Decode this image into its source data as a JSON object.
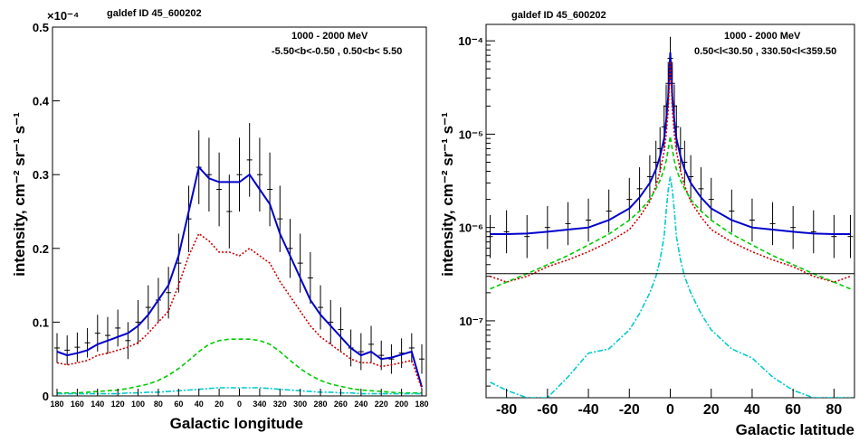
{
  "chart_data": [
    {
      "type": "line",
      "title": "galdef ID 45_600202",
      "annotation_lines": [
        "1000 -  2000 MeV",
        "-5.50<b<-0.50 ,  0.50<b< 5.50"
      ],
      "xlabel": "Galactic longitude",
      "ylabel": "intensity, cm⁻² sr⁻¹ s⁻¹",
      "y_multiplier": "×10⁻⁴",
      "x_tick_labels": [
        "180",
        "160",
        "140",
        "120",
        "100",
        "80",
        "60",
        "40",
        "20",
        "0",
        "340",
        "320",
        "300",
        "280",
        "260",
        "240",
        "220",
        "200",
        "180"
      ],
      "y_tick_labels": [
        "0",
        "0.1",
        "0.2",
        "0.3",
        "0.4",
        "0.5"
      ],
      "ylim": [
        0,
        0.5
      ],
      "x": [
        180,
        170,
        160,
        150,
        140,
        130,
        120,
        110,
        100,
        90,
        80,
        70,
        60,
        50,
        40,
        30,
        20,
        10,
        0,
        -10,
        -20,
        -30,
        -40,
        -50,
        -60,
        -70,
        -80,
        -90,
        -100,
        -110,
        -120,
        -130,
        -140,
        -150,
        -160,
        -170,
        -180
      ],
      "data_points": {
        "y": [
          0.065,
          0.062,
          0.066,
          0.072,
          0.085,
          0.082,
          0.092,
          0.075,
          0.1,
          0.12,
          0.13,
          0.14,
          0.18,
          0.24,
          0.31,
          0.3,
          0.28,
          0.25,
          0.3,
          0.32,
          0.3,
          0.28,
          0.24,
          0.2,
          0.18,
          0.16,
          0.12,
          0.1,
          0.09,
          0.065,
          0.06,
          0.07,
          0.055,
          0.05,
          0.058,
          0.065,
          0.05
        ],
        "err": [
          0.02,
          0.02,
          0.02,
          0.02,
          0.025,
          0.025,
          0.025,
          0.025,
          0.03,
          0.03,
          0.03,
          0.035,
          0.04,
          0.045,
          0.05,
          0.05,
          0.05,
          0.05,
          0.05,
          0.05,
          0.05,
          0.05,
          0.045,
          0.04,
          0.04,
          0.035,
          0.03,
          0.03,
          0.03,
          0.025,
          0.025,
          0.025,
          0.02,
          0.02,
          0.02,
          0.02,
          0.02
        ]
      },
      "series": [
        {
          "name": "",
          "style": "solid",
          "color": "#0000cc",
          "values": [
            0.06,
            0.055,
            0.058,
            0.062,
            0.07,
            0.075,
            0.08,
            0.085,
            0.095,
            0.11,
            0.13,
            0.15,
            0.19,
            0.25,
            0.31,
            0.295,
            0.29,
            0.29,
            0.29,
            0.3,
            0.28,
            0.26,
            0.22,
            0.19,
            0.16,
            0.13,
            0.11,
            0.095,
            0.08,
            0.065,
            0.055,
            0.06,
            0.05,
            0.052,
            0.056,
            0.06,
            0.012
          ]
        },
        {
          "name": "",
          "style": "dotted",
          "color": "#cc0000",
          "values": [
            0.045,
            0.042,
            0.045,
            0.048,
            0.055,
            0.058,
            0.062,
            0.066,
            0.072,
            0.085,
            0.1,
            0.115,
            0.15,
            0.19,
            0.22,
            0.21,
            0.195,
            0.195,
            0.19,
            0.2,
            0.19,
            0.18,
            0.155,
            0.135,
            0.115,
            0.095,
            0.08,
            0.07,
            0.06,
            0.05,
            0.045,
            0.045,
            0.04,
            0.042,
            0.045,
            0.048,
            0.01
          ]
        },
        {
          "name": "",
          "style": "dashed",
          "color": "#00cc00",
          "values": [
            0.004,
            0.004,
            0.004,
            0.005,
            0.006,
            0.007,
            0.008,
            0.01,
            0.013,
            0.016,
            0.021,
            0.028,
            0.037,
            0.048,
            0.06,
            0.07,
            0.075,
            0.077,
            0.077,
            0.077,
            0.075,
            0.07,
            0.06,
            0.048,
            0.037,
            0.028,
            0.021,
            0.016,
            0.013,
            0.01,
            0.008,
            0.007,
            0.006,
            0.005,
            0.004,
            0.004,
            0.004
          ]
        },
        {
          "name": "",
          "style": "dashdot",
          "color": "#00cccc",
          "values": [
            0.003,
            0.003,
            0.003,
            0.003,
            0.003,
            0.003,
            0.003,
            0.004,
            0.004,
            0.005,
            0.005,
            0.006,
            0.007,
            0.008,
            0.009,
            0.01,
            0.011,
            0.011,
            0.011,
            0.011,
            0.011,
            0.01,
            0.009,
            0.008,
            0.007,
            0.006,
            0.005,
            0.005,
            0.004,
            0.004,
            0.003,
            0.003,
            0.003,
            0.003,
            0.003,
            0.003,
            0.003
          ]
        }
      ]
    },
    {
      "type": "line",
      "title": "galdef ID 45_600202",
      "annotation_lines": [
        "1000 -  2000 MeV",
        "0.50<l<30.50 , 330.50<l<359.50"
      ],
      "xlabel": "Galactic latitude",
      "ylabel": "intensity, cm⁻² sr⁻¹ s⁻¹",
      "y_scale": "log",
      "x_tick_labels": [
        "-80",
        "-60",
        "-40",
        "-20",
        "0",
        "20",
        "40",
        "60",
        "80"
      ],
      "y_tick_labels": [
        "10⁻⁷",
        "10⁻⁶",
        "10⁻⁵",
        "10⁻⁴"
      ],
      "xlim": [
        -90,
        90
      ],
      "ylim": [
        1.5e-08,
        0.00015
      ],
      "horizontal_line": 3.2e-07,
      "x": [
        -88,
        -80,
        -70,
        -60,
        -50,
        -40,
        -30,
        -20,
        -15,
        -10,
        -7,
        -5,
        -3,
        -2,
        -1,
        0,
        1,
        2,
        3,
        5,
        7,
        10,
        15,
        20,
        30,
        40,
        50,
        60,
        70,
        80,
        88
      ],
      "data_points": {
        "y": [
          8e-07,
          9e-07,
          8e-07,
          1e-06,
          1.1e-06,
          1.2e-06,
          1.5e-06,
          2e-06,
          2.6e-06,
          3.5e-06,
          5e-06,
          7e-06,
          1.2e-05,
          2e-05,
          3.5e-05,
          6.5e-05,
          3.5e-05,
          2e-05,
          1.2e-05,
          7e-06,
          5e-06,
          3.5e-06,
          2.6e-06,
          2e-06,
          1.5e-06,
          1.2e-06,
          1.1e-06,
          1e-06,
          9e-07,
          8e-07,
          8e-07
        ],
        "err_factor": 1.7
      },
      "series": [
        {
          "name": "",
          "style": "solid",
          "color": "#0000cc",
          "values": [
            8.5e-07,
            8.5e-07,
            8.6e-07,
            9e-07,
            9.5e-07,
            1e-06,
            1.2e-06,
            1.6e-06,
            2.1e-06,
            3e-06,
            4.2e-06,
            5.8e-06,
            9e-06,
            1.4e-05,
            2.5e-05,
            7.5e-05,
            2.5e-05,
            1.4e-05,
            9e-06,
            5.8e-06,
            4.2e-06,
            3e-06,
            2.1e-06,
            1.6e-06,
            1.2e-06,
            1e-06,
            9.5e-07,
            9e-07,
            8.6e-07,
            8.5e-07,
            8.5e-07
          ]
        },
        {
          "name": "",
          "style": "dotted",
          "color": "#cc0000",
          "values": [
            3e-07,
            2.6e-07,
            3e-07,
            3.8e-07,
            4.5e-07,
            5.5e-07,
            7e-07,
            9.5e-07,
            1.3e-06,
            1.9e-06,
            2.8e-06,
            4e-06,
            6.5e-06,
            1e-05,
            1.8e-05,
            6e-05,
            1.8e-05,
            1e-05,
            6.5e-06,
            4e-06,
            2.8e-06,
            1.9e-06,
            1.3e-06,
            9.5e-07,
            7e-07,
            5.5e-07,
            4.5e-07,
            3.8e-07,
            3e-07,
            2.6e-07,
            3e-07
          ]
        },
        {
          "name": "",
          "style": "dashed",
          "color": "#00cc00",
          "values": [
            2.2e-07,
            2.6e-07,
            3.2e-07,
            4e-07,
            5e-07,
            6.5e-07,
            8.5e-07,
            1.2e-06,
            1.5e-06,
            2e-06,
            2.6e-06,
            3.2e-06,
            4.2e-06,
            5.2e-06,
            6.8e-06,
            9.5e-06,
            6.8e-06,
            5.2e-06,
            4.2e-06,
            3.2e-06,
            2.6e-06,
            2e-06,
            1.5e-06,
            1.2e-06,
            8.5e-07,
            6.5e-07,
            5e-07,
            4e-07,
            3.2e-07,
            2.6e-07,
            2.2e-07
          ]
        },
        {
          "name": "",
          "style": "dashdot",
          "color": "#00cccc",
          "values": [
            2.2e-08,
            1.8e-08,
            1.5e-08,
            1.5e-08,
            2.5e-08,
            4.5e-08,
            5e-08,
            8e-08,
            1.2e-07,
            2e-07,
            3e-07,
            4.5e-07,
            8e-07,
            1.5e-06,
            2.5e-06,
            3.5e-06,
            2.5e-06,
            1.5e-06,
            8e-07,
            4.5e-07,
            3e-07,
            2e-07,
            1.2e-07,
            8e-08,
            5e-08,
            4e-08,
            2.5e-08,
            1.8e-08,
            1.5e-08,
            1.5e-08,
            1.5e-08
          ]
        }
      ]
    }
  ]
}
